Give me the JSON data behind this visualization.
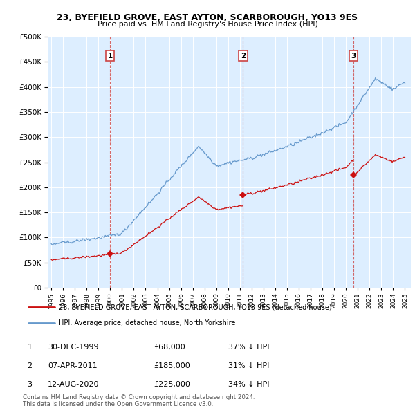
{
  "title": "23, BYEFIELD GROVE, EAST AYTON, SCARBOROUGH, YO13 9ES",
  "subtitle": "Price paid vs. HM Land Registry's House Price Index (HPI)",
  "hpi_color": "#6699cc",
  "price_color": "#cc1111",
  "plot_bg": "#ddeeff",
  "fig_bg": "#ffffff",
  "ylim": [
    0,
    500000
  ],
  "xlim": [
    1994.7,
    2025.5
  ],
  "yticks": [
    0,
    50000,
    100000,
    150000,
    200000,
    250000,
    300000,
    350000,
    400000,
    450000,
    500000
  ],
  "purchases": [
    {
      "label": "1",
      "date": "30-DEC-1999",
      "price": 68000,
      "x_year": 1999.99,
      "hpi_pct": "37% ↓ HPI"
    },
    {
      "label": "2",
      "date": "07-APR-2011",
      "price": 185000,
      "x_year": 2011.27,
      "hpi_pct": "31% ↓ HPI"
    },
    {
      "label": "3",
      "date": "12-AUG-2020",
      "price": 225000,
      "x_year": 2020.62,
      "hpi_pct": "34% ↓ HPI"
    }
  ],
  "legend_house_label": "23, BYEFIELD GROVE, EAST AYTON, SCARBOROUGH, YO13 9ES (detached house)",
  "legend_hpi_label": "HPI: Average price, detached house, North Yorkshire",
  "footer": "Contains HM Land Registry data © Crown copyright and database right 2024.\nThis data is licensed under the Open Government Licence v3.0."
}
